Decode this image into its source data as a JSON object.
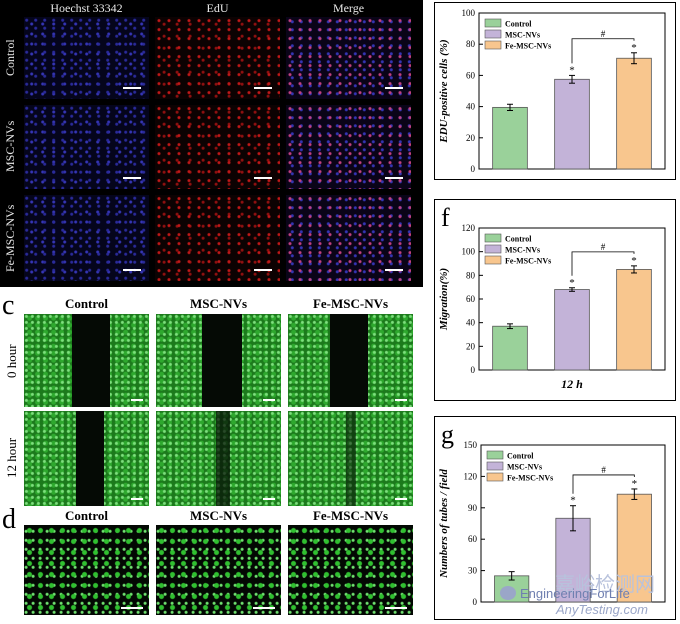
{
  "panel_b": {
    "columns": [
      "Hoechst 33342",
      "EdU",
      "Merge"
    ],
    "rows": [
      "Control",
      "MSC-NVs",
      "Fe-MSC-NVs"
    ]
  },
  "panel_c": {
    "letter": "c",
    "columns": [
      "Control",
      "MSC-NVs",
      "Fe-MSC-NVs"
    ],
    "rows": [
      "0 hour",
      "12 hour"
    ]
  },
  "panel_d": {
    "letter": "d",
    "columns": [
      "Control",
      "MSC-NVs",
      "Fe-MSC-NVs"
    ]
  },
  "colors": {
    "control": "#9ad19a",
    "msc": "#c3b3d8",
    "fe": "#f8c68e"
  },
  "chart_data": [
    {
      "type": "bar",
      "panel": "",
      "ylabel": "EDU-positive cells (%)",
      "xlabel": "",
      "ylim": [
        0,
        100
      ],
      "yticks": [
        0,
        20,
        40,
        60,
        80,
        100
      ],
      "categories": [
        "Control",
        "MSC-NVs",
        "Fe-MSC-NVs"
      ],
      "values": [
        39.5,
        57.5,
        71
      ],
      "errors": [
        2,
        2.5,
        3.5
      ],
      "stars": [
        "",
        "*",
        "*"
      ],
      "bracket": "#",
      "legend": [
        "Control",
        "MSC-NVs",
        "Fe-MSC-NVs"
      ]
    },
    {
      "type": "bar",
      "panel": "f",
      "ylabel": "Migration(%)",
      "xlabel": "12 h",
      "ylim": [
        0,
        120
      ],
      "yticks": [
        0,
        20,
        40,
        60,
        80,
        100,
        120
      ],
      "categories": [
        "Control",
        "MSC-NVs",
        "Fe-MSC-NVs"
      ],
      "values": [
        37,
        68,
        85
      ],
      "errors": [
        2,
        1.5,
        3
      ],
      "stars": [
        "",
        "*",
        "*"
      ],
      "bracket": "#",
      "legend": [
        "Control",
        "MSC-NVs",
        "Fe-MSC-NVs"
      ]
    },
    {
      "type": "bar",
      "panel": "g",
      "ylabel": "Numbers of tubes / field",
      "xlabel": "",
      "ylim": [
        0,
        150
      ],
      "yticks": [
        0,
        30,
        60,
        90,
        120,
        150
      ],
      "categories": [
        "Control",
        "MSC-NVs",
        "Fe-MSC-NVs"
      ],
      "values": [
        25,
        80,
        103
      ],
      "errors": [
        4,
        12,
        5
      ],
      "stars": [
        "",
        "*",
        "*"
      ],
      "bracket": "#",
      "legend": [
        "Control",
        "MSC-NVs",
        "Fe-MSC-NVs"
      ]
    }
  ],
  "watermark": {
    "cn": "嘉峪检测网",
    "line1": "EngineeringForLife",
    "line2": "AnyTesting.com"
  }
}
